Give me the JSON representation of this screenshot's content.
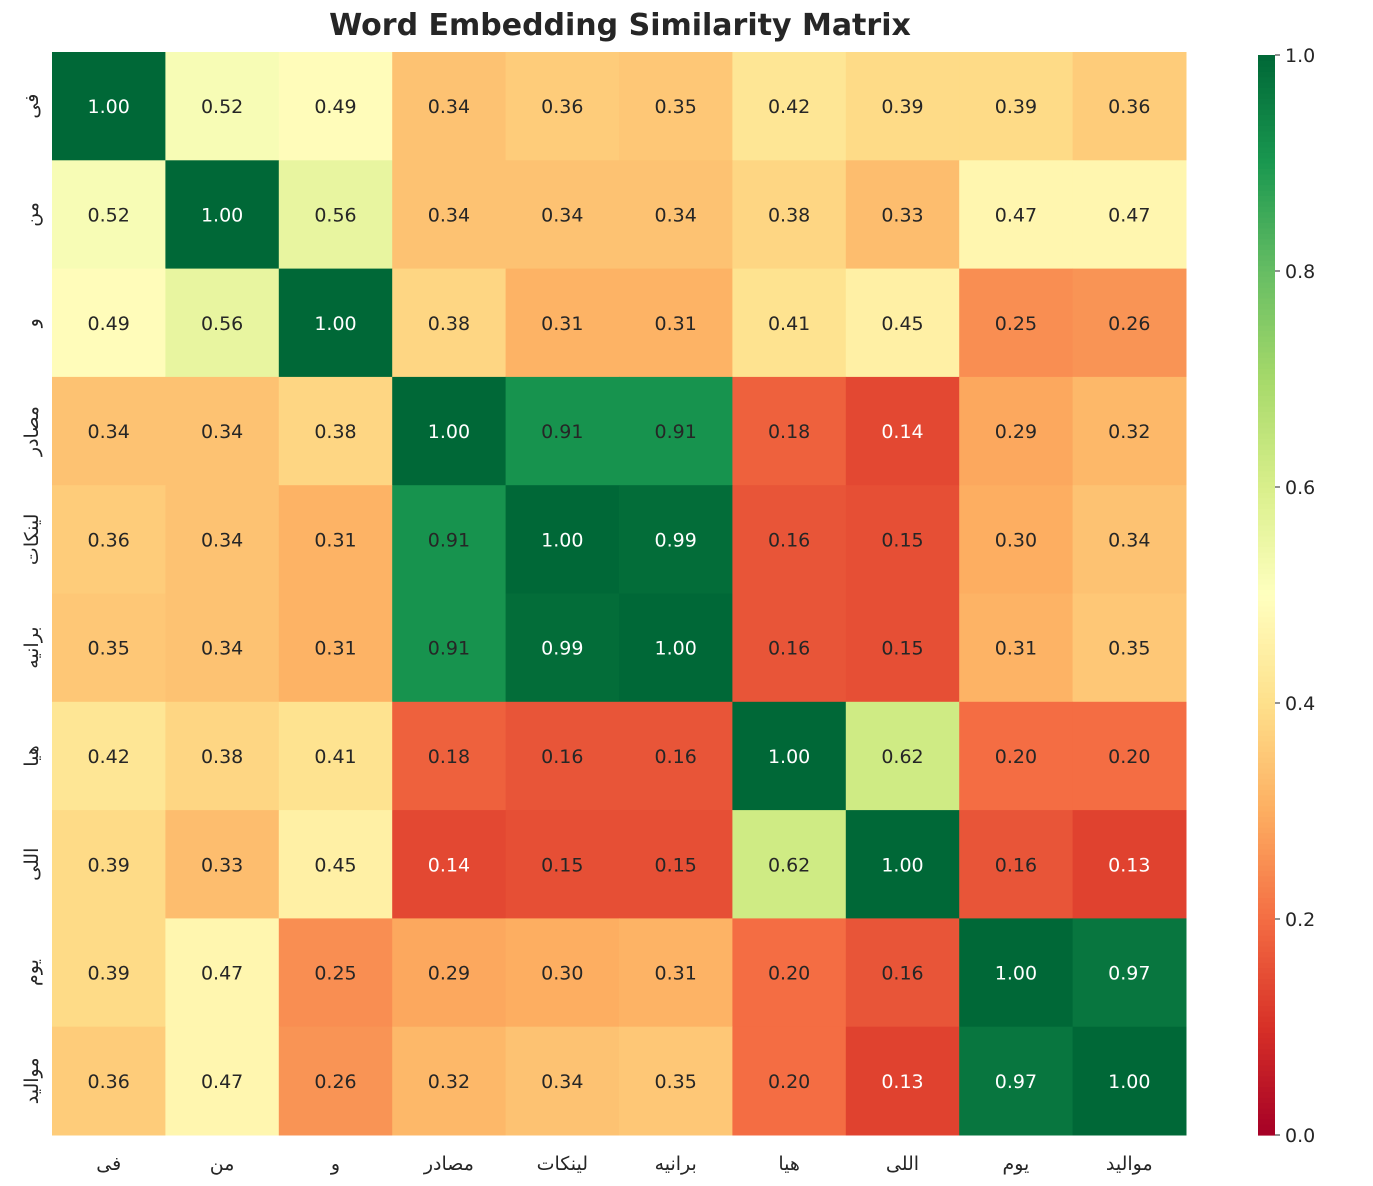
{
  "chart_data": {
    "type": "heatmap",
    "title": "Word Embedding Similarity Matrix",
    "labels": [
      "فى",
      "من",
      "و",
      "مصادر",
      "لينكات",
      "برانيه",
      "هيا",
      "اللى",
      "يوم",
      "مواليد"
    ],
    "values": [
      [
        1.0,
        0.52,
        0.49,
        0.34,
        0.36,
        0.35,
        0.42,
        0.39,
        0.39,
        0.36
      ],
      [
        0.52,
        1.0,
        0.56,
        0.34,
        0.34,
        0.34,
        0.38,
        0.33,
        0.47,
        0.47
      ],
      [
        0.49,
        0.56,
        1.0,
        0.38,
        0.31,
        0.31,
        0.41,
        0.45,
        0.25,
        0.26
      ],
      [
        0.34,
        0.34,
        0.38,
        1.0,
        0.91,
        0.91,
        0.18,
        0.14,
        0.29,
        0.32
      ],
      [
        0.36,
        0.34,
        0.31,
        0.91,
        1.0,
        0.99,
        0.16,
        0.15,
        0.3,
        0.34
      ],
      [
        0.35,
        0.34,
        0.31,
        0.91,
        0.99,
        1.0,
        0.16,
        0.15,
        0.31,
        0.35
      ],
      [
        0.42,
        0.38,
        0.41,
        0.18,
        0.16,
        0.16,
        1.0,
        0.62,
        0.2,
        0.2
      ],
      [
        0.39,
        0.33,
        0.45,
        0.14,
        0.15,
        0.15,
        0.62,
        1.0,
        0.16,
        0.13
      ],
      [
        0.39,
        0.47,
        0.25,
        0.29,
        0.3,
        0.31,
        0.2,
        0.16,
        1.0,
        0.97
      ],
      [
        0.36,
        0.47,
        0.26,
        0.32,
        0.34,
        0.35,
        0.2,
        0.13,
        0.97,
        1.0
      ]
    ],
    "colormap": "RdYlGn",
    "vmin": 0,
    "vmax": 1,
    "colorbar_ticks": [
      "0.0",
      "0.2",
      "0.4",
      "0.6",
      "0.8",
      "1.0"
    ]
  }
}
